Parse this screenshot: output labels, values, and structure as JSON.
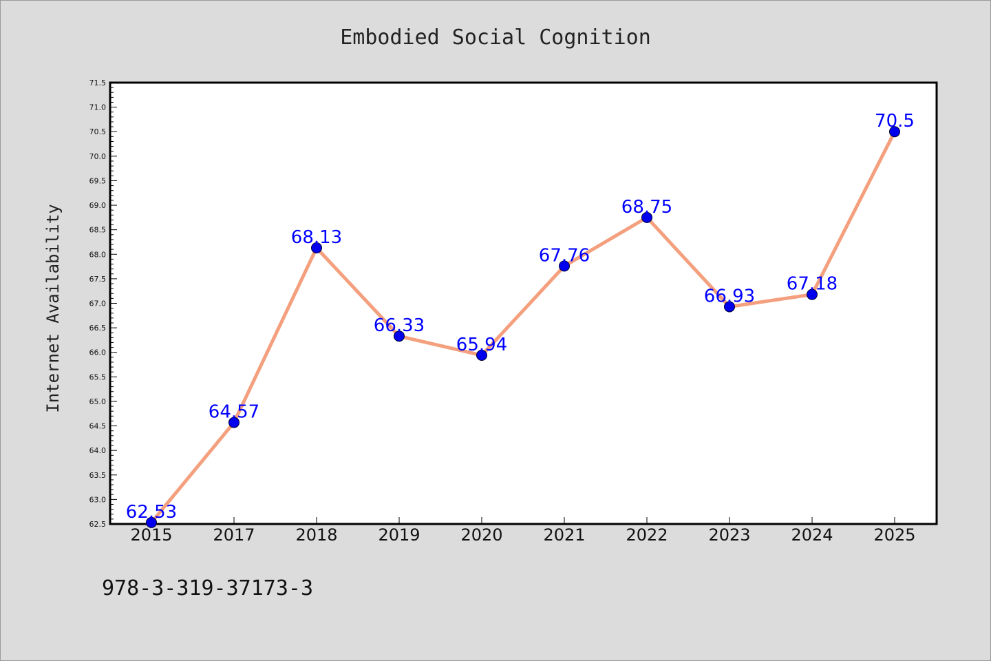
{
  "chart_data": {
    "type": "line",
    "title": "Embodied Social Cognition",
    "ylabel": "Internet Availability",
    "xlabel": "",
    "categories": [
      "2015",
      "2017",
      "2018",
      "2019",
      "2020",
      "2021",
      "2022",
      "2023",
      "2024",
      "2025"
    ],
    "series": [
      {
        "values": [
          62.53,
          64.57,
          68.13,
          66.33,
          65.94,
          67.76,
          68.75,
          66.93,
          67.18,
          70.5
        ],
        "labels": [
          "62.53",
          "64.57",
          "68.13",
          "66.33",
          "65.94",
          "67.76",
          "68.75",
          "66.93",
          "67.18",
          "70.5"
        ]
      }
    ],
    "ylim": [
      62.5,
      71.5
    ],
    "yticks": [
      "62.5",
      "63.0",
      "63.5",
      "64.0",
      "64.5",
      "65.0",
      "65.5",
      "66.0",
      "66.5",
      "67.0",
      "67.5",
      "68.0",
      "68.5",
      "69.0",
      "69.5",
      "70.0",
      "70.5",
      "71.0",
      "71.5"
    ],
    "grid": false,
    "colors": {
      "line": "#f4a07e",
      "marker": "#0000ee",
      "data_label": "#0000ff",
      "background": "#dcdcdc",
      "plot_background": "#ffffff"
    }
  },
  "footer": "978-3-319-37173-3"
}
